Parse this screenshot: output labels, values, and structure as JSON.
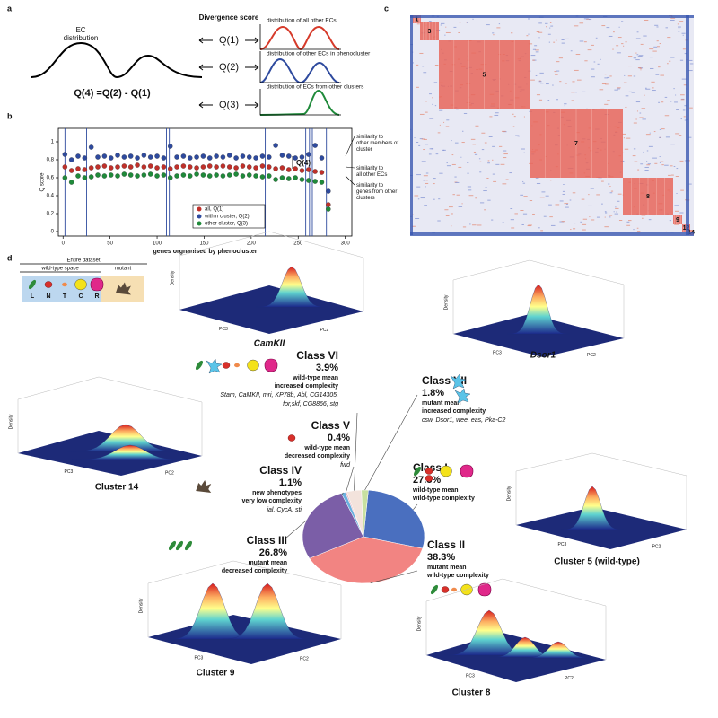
{
  "panel_labels": [
    "a",
    "b",
    "c",
    "d"
  ],
  "panel_a": {
    "ec_label": [
      "EC",
      "distribution"
    ],
    "divergence_title": "Divergence score",
    "scores": [
      "Q(1)",
      "Q(2)",
      "Q(3)"
    ],
    "equation": "Q(4) =Q(2) - Q(1)",
    "distributions": [
      "distribution of all other ECs",
      "distribution of other ECs in phenocluster",
      "distribution of ECs from other clusters"
    ]
  },
  "chart_data": [
    {
      "type": "scatter",
      "xlabel": "genes orgnanised by phenocluster",
      "ylabel": "Q score",
      "xlim": [
        -5,
        307
      ],
      "ylim": [
        -0.05,
        1.15
      ],
      "xticks": [
        0,
        50,
        100,
        150,
        200,
        250,
        300
      ],
      "yticks": [
        0,
        0.2,
        0.4,
        0.6,
        0.8,
        1
      ],
      "cluster_boundaries": [
        2,
        25,
        110,
        113,
        215,
        258,
        262,
        265,
        280
      ],
      "x": [
        2,
        9,
        16,
        23,
        30,
        37,
        44,
        51,
        58,
        65,
        72,
        79,
        86,
        93,
        100,
        107,
        114,
        121,
        128,
        135,
        142,
        149,
        156,
        163,
        170,
        177,
        184,
        191,
        198,
        205,
        212,
        219,
        226,
        233,
        240,
        247,
        254,
        261,
        268,
        275,
        282
      ],
      "series": [
        {
          "name": "all, Q(1)",
          "color": "#c0302a",
          "values": [
            0.72,
            0.68,
            0.7,
            0.69,
            0.71,
            0.72,
            0.73,
            0.71,
            0.72,
            0.73,
            0.72,
            0.74,
            0.72,
            0.73,
            0.71,
            0.72,
            0.7,
            0.72,
            0.73,
            0.72,
            0.71,
            0.72,
            0.73,
            0.72,
            0.73,
            0.72,
            0.71,
            0.73,
            0.72,
            0.71,
            0.73,
            0.72,
            0.7,
            0.71,
            0.69,
            0.7,
            0.68,
            0.69,
            0.67,
            0.66,
            0.3
          ]
        },
        {
          "name": "within cluster, Q(2)",
          "color": "#2e4a9e",
          "values": [
            0.86,
            0.8,
            0.84,
            0.82,
            0.94,
            0.83,
            0.84,
            0.82,
            0.85,
            0.83,
            0.84,
            0.82,
            0.85,
            0.83,
            0.84,
            0.82,
            0.95,
            0.83,
            0.84,
            0.82,
            0.83,
            0.84,
            0.82,
            0.84,
            0.83,
            0.85,
            0.82,
            0.84,
            0.83,
            0.82,
            0.84,
            0.83,
            0.96,
            0.85,
            0.84,
            0.82,
            0.83,
            0.86,
            0.96,
            0.82,
            0.45
          ]
        },
        {
          "name": "other cluster, Q(3)",
          "color": "#1f8a3a",
          "values": [
            0.6,
            0.55,
            0.62,
            0.6,
            0.61,
            0.63,
            0.62,
            0.63,
            0.62,
            0.64,
            0.63,
            0.62,
            0.63,
            0.64,
            0.62,
            0.63,
            0.6,
            0.62,
            0.63,
            0.62,
            0.64,
            0.63,
            0.62,
            0.63,
            0.62,
            0.63,
            0.64,
            0.62,
            0.63,
            0.62,
            0.61,
            0.62,
            0.58,
            0.6,
            0.59,
            0.6,
            0.58,
            0.57,
            0.56,
            0.55,
            0.25
          ]
        }
      ],
      "annotations": [
        {
          "text": "similarity to other members of cluster",
          "color": "#2e4a9e"
        },
        {
          "text": "similarity to all other ECs",
          "color": "#c0302a"
        },
        {
          "text": "similarity to genes from other clusters",
          "color": "#1f8a3a"
        },
        {
          "text": "Q(4)",
          "color": "#111111"
        }
      ]
    },
    {
      "type": "pie",
      "categories": [
        "Class I",
        "Class II",
        "Class III",
        "Class IV",
        "Class V",
        "Class VI",
        "Class VII"
      ],
      "values": [
        27.8,
        38.3,
        26.8,
        1.1,
        0.4,
        3.9,
        1.8
      ],
      "value_labels": [
        "27.8%",
        "38.3%",
        "26.8%",
        "1.1%",
        "0.4%",
        "3.9%",
        "1.8%"
      ],
      "colors": [
        "#4a6fbf",
        "#f28482",
        "#7b5ea7",
        "#6ab0de",
        "#e9b6c0",
        "#f3e3dc",
        "#c8e0a0"
      ],
      "descriptions": [
        [
          "wild-type mean",
          "wild-type complexity"
        ],
        [
          "mutant mean",
          "wild-type complexity"
        ],
        [
          "mutant mean",
          "decreased complexity"
        ],
        [
          "new phenotypes",
          "very low complexity"
        ],
        [
          "wild-type mean",
          "decreased complexity"
        ],
        [
          "wild-type mean",
          "increased complexity"
        ],
        [
          "mutant mean",
          "increased complexity"
        ]
      ],
      "genes": [
        null,
        null,
        null,
        [
          "ial, CycA, sti"
        ],
        [
          "fwd"
        ],
        [
          "Stam, CaMKII, mri, KP78b, Abl, CG14305,",
          "for,skf, CG8866, stg"
        ],
        [
          "csw, Dsor1, wee, eas, Pka-C2"
        ]
      ]
    }
  ],
  "heatmap_labels": [
    "1",
    "3",
    "5",
    "7",
    "8",
    "9",
    "12",
    "14"
  ],
  "inset": {
    "entire": "Entire dataset",
    "wild_type": "wild-type space",
    "mutant": "mutant",
    "letters": [
      "L",
      "N",
      "T",
      "C",
      "R"
    ]
  },
  "density_axis_labels": [
    "Density",
    "PC3",
    "PC2"
  ],
  "density_titles": [
    "CamKII",
    "Dsor1",
    "Cluster 14",
    "Cluster 5 (wild-type)",
    "Cluster 9",
    "Cluster 8"
  ]
}
